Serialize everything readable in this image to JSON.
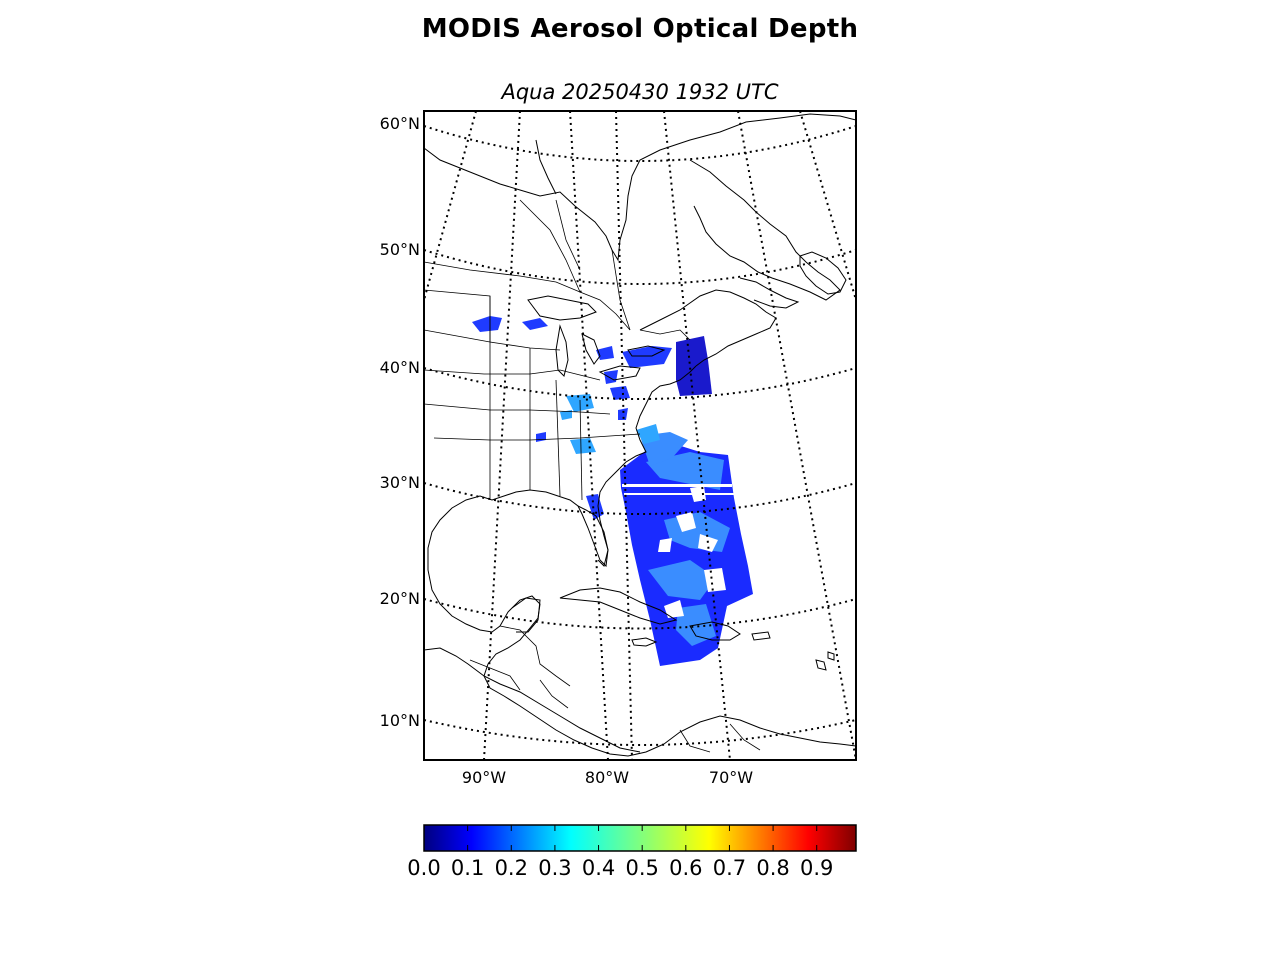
{
  "title": "MODIS Aerosol Optical Depth",
  "subtitle": "Aqua 20250430 1932 UTC",
  "map": {
    "projection": "conic",
    "lat_range": [
      6.5,
      61
    ],
    "lon_range": [
      -95,
      -60
    ],
    "gridlines": "dotted",
    "coastlines": true,
    "country_and_state_borders": true
  },
  "lat_labels": [
    {
      "value": 60,
      "text": "60°N"
    },
    {
      "value": 50,
      "text": "50°N"
    },
    {
      "value": 40,
      "text": "40°N"
    },
    {
      "value": 30,
      "text": "30°N"
    },
    {
      "value": 20,
      "text": "20°N"
    },
    {
      "value": 10,
      "text": "10°N"
    }
  ],
  "lon_labels": [
    {
      "value": -90,
      "text": "90°W"
    },
    {
      "value": -80,
      "text": "80°W"
    },
    {
      "value": -70,
      "text": "70°W"
    }
  ],
  "colorbar": {
    "colormap": "jet",
    "range": [
      0.0,
      0.99
    ],
    "ticks": [
      "0.0",
      "0.1",
      "0.2",
      "0.3",
      "0.4",
      "0.5",
      "0.6",
      "0.7",
      "0.8",
      "0.9"
    ],
    "colors": [
      "#00007f",
      "#0000ff",
      "#007fff",
      "#00ffff",
      "#7fff7f",
      "#ffff00",
      "#ff7f00",
      "#ff0000",
      "#7f0000"
    ]
  },
  "aod_swath": {
    "description_colors": {
      "low": "#1a1aff",
      "mid": "#1f6dff",
      "high": "#3fa9ff",
      "cloud_gap": "#ffffff"
    }
  }
}
